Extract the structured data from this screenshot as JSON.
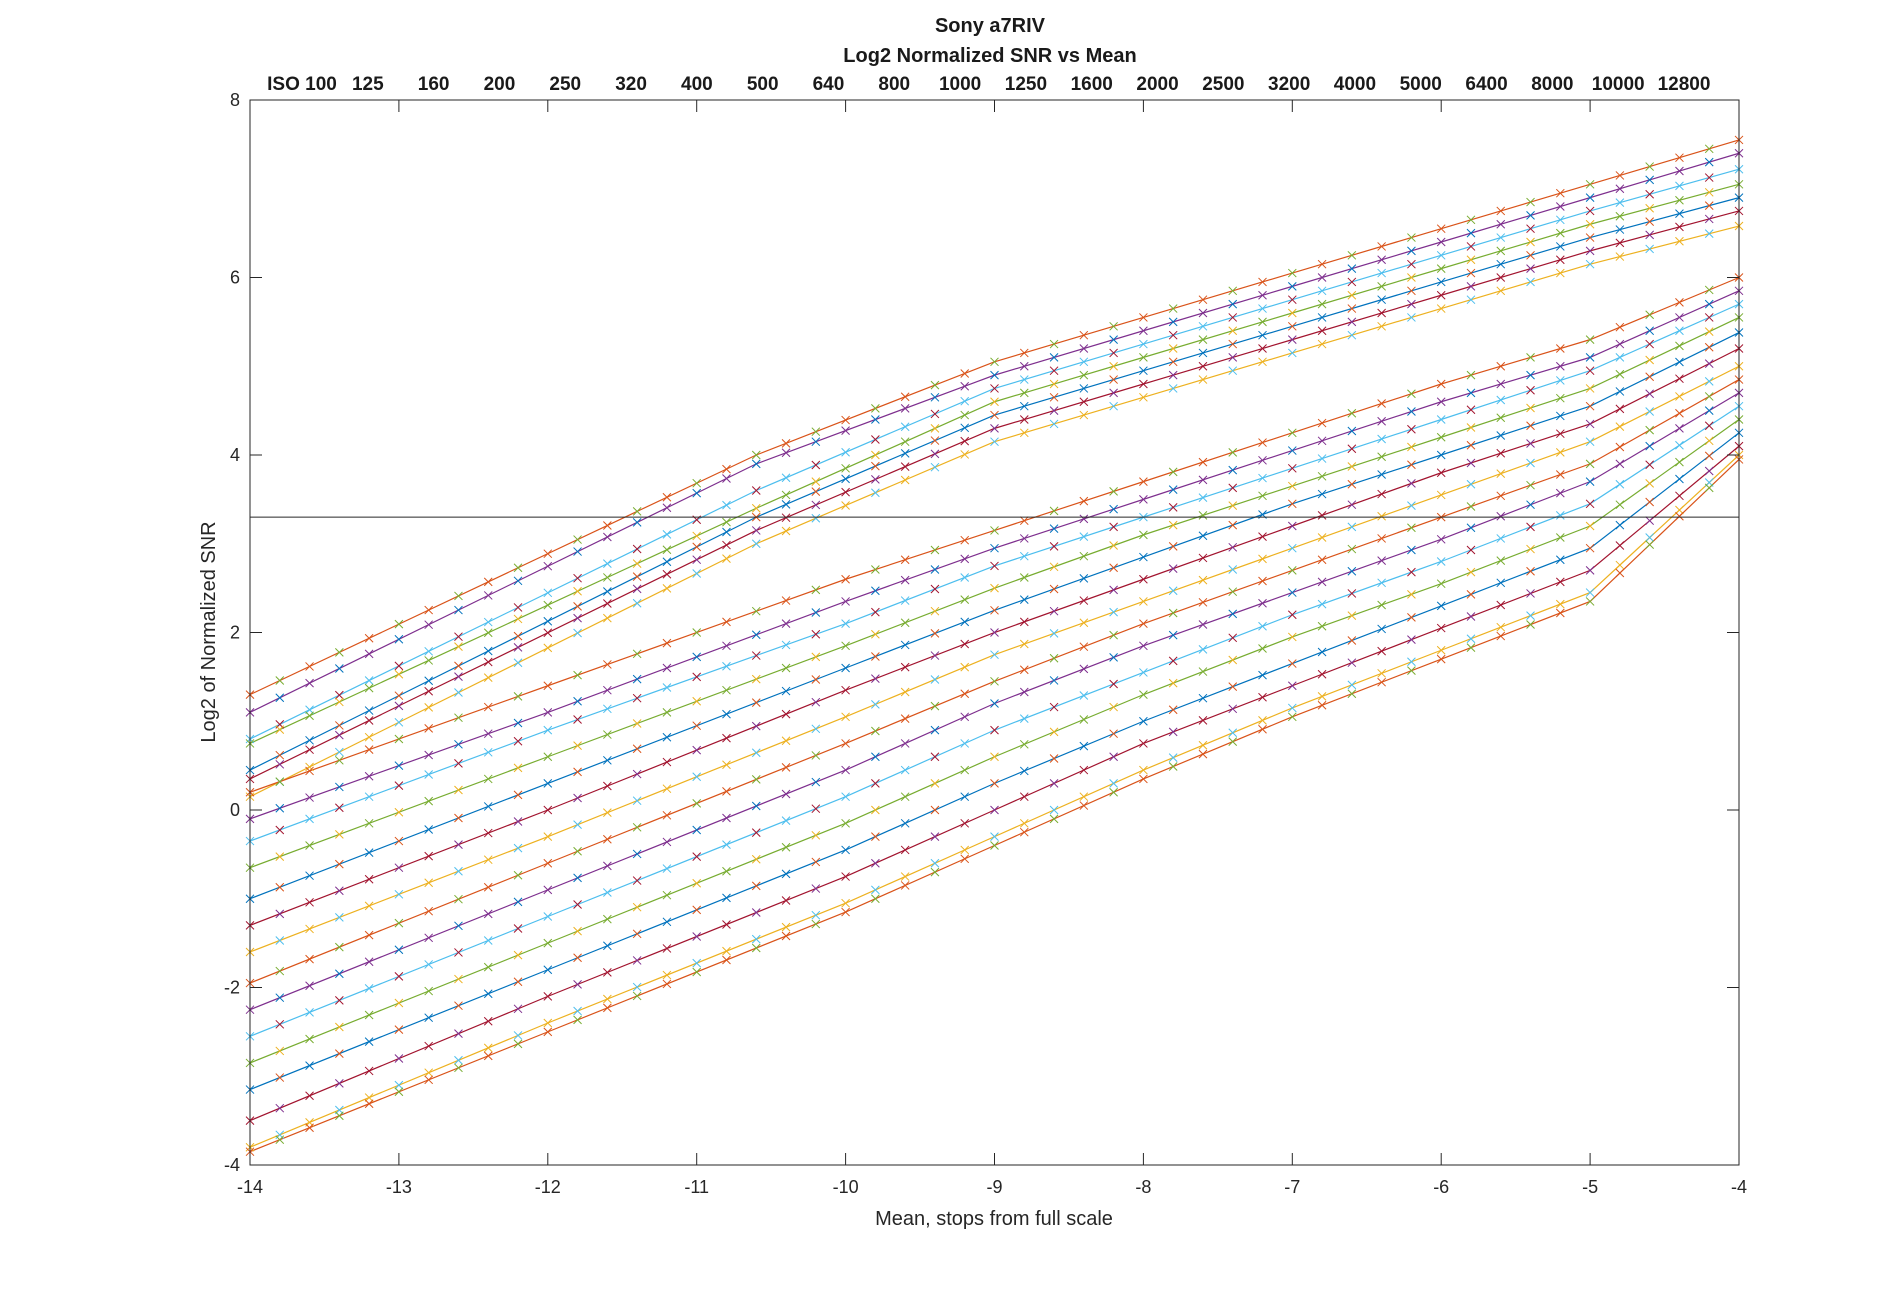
{
  "chart_data": {
    "type": "line",
    "title": "Sony a7RIV",
    "subtitle": "Log2 Normalized SNR vs Mean",
    "xlabel": "Mean, stops from full scale",
    "ylabel": "Log2 of Normalized SNR",
    "xlim": [
      -14,
      -4
    ],
    "ylim": [
      -4,
      8
    ],
    "xticks": [
      "-14",
      "-13",
      "-12",
      "-11",
      "-10",
      "-9",
      "-8",
      "-7",
      "-6",
      "-5",
      "-4"
    ],
    "yticks": [
      "-4",
      "-2",
      "0",
      "2",
      "4",
      "6",
      "8"
    ],
    "grid": false,
    "reference_line_y": 3.3,
    "iso_labels": [
      "ISO 100",
      "125",
      "160",
      "200",
      "250",
      "320",
      "400",
      "500",
      "640",
      "800",
      "1000",
      "1250",
      "1600",
      "2000",
      "2500",
      "3200",
      "4000",
      "5000",
      "6400",
      "8000",
      "10000",
      "12800"
    ],
    "colors": [
      "#D95319",
      "#7E2F8E",
      "#4DBEEE",
      "#77AC30",
      "#0072BD",
      "#A2142F",
      "#EDB120"
    ],
    "series": [
      {
        "iso": "ISO 100",
        "points": [
          [
            -14,
            1.3
          ],
          [
            -10.6,
            4.0
          ],
          [
            -9,
            5.05
          ],
          [
            -8,
            5.55
          ],
          [
            -7,
            6.05
          ],
          [
            -6,
            6.55
          ],
          [
            -5,
            7.05
          ],
          [
            -4,
            7.55
          ]
        ]
      },
      {
        "iso": "125",
        "points": [
          [
            -14,
            1.1
          ],
          [
            -10.6,
            3.9
          ],
          [
            -9,
            4.9
          ],
          [
            -8,
            5.4
          ],
          [
            -7,
            5.9
          ],
          [
            -6,
            6.4
          ],
          [
            -5,
            6.9
          ],
          [
            -4,
            7.4
          ]
        ]
      },
      {
        "iso": "160",
        "points": [
          [
            -14,
            0.8
          ],
          [
            -10.6,
            3.6
          ],
          [
            -9,
            4.75
          ],
          [
            -8,
            5.25
          ],
          [
            -7,
            5.75
          ],
          [
            -6,
            6.25
          ],
          [
            -5,
            6.75
          ],
          [
            -4,
            7.22
          ]
        ]
      },
      {
        "iso": "200",
        "points": [
          [
            -14,
            0.75
          ],
          [
            -10.6,
            3.4
          ],
          [
            -9,
            4.6
          ],
          [
            -8,
            5.1
          ],
          [
            -7,
            5.6
          ],
          [
            -6,
            6.1
          ],
          [
            -5,
            6.6
          ],
          [
            -4,
            7.05
          ]
        ]
      },
      {
        "iso": "250",
        "points": [
          [
            -14,
            0.45
          ],
          [
            -10.6,
            3.3
          ],
          [
            -9,
            4.45
          ],
          [
            -8,
            4.95
          ],
          [
            -7,
            5.45
          ],
          [
            -6,
            5.95
          ],
          [
            -5,
            6.45
          ],
          [
            -4,
            6.9
          ]
        ]
      },
      {
        "iso": "320",
        "points": [
          [
            -14,
            0.35
          ],
          [
            -10.6,
            3.15
          ],
          [
            -9,
            4.3
          ],
          [
            -8,
            4.8
          ],
          [
            -7,
            5.3
          ],
          [
            -6,
            5.8
          ],
          [
            -5,
            6.3
          ],
          [
            -4,
            6.75
          ]
        ]
      },
      {
        "iso": "400",
        "points": [
          [
            -14,
            0.15
          ],
          [
            -10.6,
            3.0
          ],
          [
            -9,
            4.15
          ],
          [
            -8,
            4.65
          ],
          [
            -7,
            5.15
          ],
          [
            -6,
            5.65
          ],
          [
            -5,
            6.15
          ],
          [
            -4,
            6.58
          ]
        ]
      },
      {
        "iso": "500",
        "points": [
          [
            -14,
            0.2
          ],
          [
            -12,
            1.4
          ],
          [
            -10,
            2.6
          ],
          [
            -9,
            3.15
          ],
          [
            -8,
            3.7
          ],
          [
            -7,
            4.25
          ],
          [
            -6,
            4.8
          ],
          [
            -5,
            5.3
          ],
          [
            -4,
            6.0
          ]
        ]
      },
      {
        "iso": "640",
        "points": [
          [
            -14,
            -0.1
          ],
          [
            -12,
            1.1
          ],
          [
            -10,
            2.35
          ],
          [
            -9,
            2.95
          ],
          [
            -8,
            3.5
          ],
          [
            -7,
            4.05
          ],
          [
            -6,
            4.6
          ],
          [
            -5,
            5.1
          ],
          [
            -4,
            5.85
          ]
        ]
      },
      {
        "iso": "800",
        "points": [
          [
            -14,
            -0.35
          ],
          [
            -12,
            0.9
          ],
          [
            -10,
            2.1
          ],
          [
            -9,
            2.75
          ],
          [
            -8,
            3.3
          ],
          [
            -7,
            3.85
          ],
          [
            -6,
            4.4
          ],
          [
            -5,
            4.95
          ],
          [
            -4,
            5.7
          ]
        ]
      },
      {
        "iso": "1000",
        "points": [
          [
            -14,
            -0.65
          ],
          [
            -12,
            0.6
          ],
          [
            -10,
            1.85
          ],
          [
            -9,
            2.5
          ],
          [
            -8,
            3.1
          ],
          [
            -7,
            3.65
          ],
          [
            -6,
            4.2
          ],
          [
            -5,
            4.75
          ],
          [
            -4,
            5.55
          ]
        ]
      },
      {
        "iso": "1250",
        "points": [
          [
            -14,
            -1.0
          ],
          [
            -12,
            0.3
          ],
          [
            -10,
            1.6
          ],
          [
            -9,
            2.25
          ],
          [
            -8,
            2.85
          ],
          [
            -7,
            3.45
          ],
          [
            -6,
            4.0
          ],
          [
            -5,
            4.55
          ],
          [
            -4,
            5.38
          ]
        ]
      },
      {
        "iso": "1600",
        "points": [
          [
            -14,
            -1.3
          ],
          [
            -12,
            0.0
          ],
          [
            -10,
            1.35
          ],
          [
            -9,
            2.0
          ],
          [
            -8,
            2.6
          ],
          [
            -7,
            3.2
          ],
          [
            -6,
            3.8
          ],
          [
            -5,
            4.35
          ],
          [
            -4,
            5.2
          ]
        ]
      },
      {
        "iso": "2000",
        "points": [
          [
            -14,
            -1.6
          ],
          [
            -12,
            -0.3
          ],
          [
            -10,
            1.05
          ],
          [
            -9,
            1.75
          ],
          [
            -8,
            2.35
          ],
          [
            -7,
            2.95
          ],
          [
            -6,
            3.55
          ],
          [
            -5,
            4.15
          ],
          [
            -4,
            5.0
          ]
        ]
      },
      {
        "iso": "2500",
        "points": [
          [
            -14,
            -1.95
          ],
          [
            -12,
            -0.6
          ],
          [
            -10,
            0.75
          ],
          [
            -9,
            1.45
          ],
          [
            -8,
            2.1
          ],
          [
            -7,
            2.7
          ],
          [
            -6,
            3.3
          ],
          [
            -5,
            3.9
          ],
          [
            -4,
            4.85
          ]
        ]
      },
      {
        "iso": "3200",
        "points": [
          [
            -14,
            -2.25
          ],
          [
            -12,
            -0.9
          ],
          [
            -10,
            0.45
          ],
          [
            -9,
            1.2
          ],
          [
            -8,
            1.85
          ],
          [
            -7,
            2.45
          ],
          [
            -6,
            3.05
          ],
          [
            -5,
            3.7
          ],
          [
            -4,
            4.7
          ]
        ]
      },
      {
        "iso": "4000",
        "points": [
          [
            -14,
            -2.55
          ],
          [
            -12,
            -1.2
          ],
          [
            -10,
            0.15
          ],
          [
            -9,
            0.9
          ],
          [
            -8,
            1.55
          ],
          [
            -7,
            2.2
          ],
          [
            -6,
            2.8
          ],
          [
            -5,
            3.45
          ],
          [
            -4,
            4.55
          ]
        ]
      },
      {
        "iso": "5000",
        "points": [
          [
            -14,
            -2.85
          ],
          [
            -12,
            -1.5
          ],
          [
            -10,
            -0.15
          ],
          [
            -9,
            0.6
          ],
          [
            -8,
            1.3
          ],
          [
            -7,
            1.95
          ],
          [
            -6,
            2.55
          ],
          [
            -5,
            3.2
          ],
          [
            -4,
            4.4
          ]
        ]
      },
      {
        "iso": "6400",
        "points": [
          [
            -14,
            -3.15
          ],
          [
            -12,
            -1.8
          ],
          [
            -10,
            -0.45
          ],
          [
            -9,
            0.3
          ],
          [
            -8,
            1.0
          ],
          [
            -7,
            1.65
          ],
          [
            -6,
            2.3
          ],
          [
            -5,
            2.95
          ],
          [
            -4,
            4.25
          ]
        ]
      },
      {
        "iso": "8000",
        "points": [
          [
            -14,
            -3.5
          ],
          [
            -12,
            -2.1
          ],
          [
            -10,
            -0.75
          ],
          [
            -9,
            0.0
          ],
          [
            -8,
            0.75
          ],
          [
            -7,
            1.4
          ],
          [
            -6,
            2.05
          ],
          [
            -5,
            2.7
          ],
          [
            -4,
            4.1
          ]
        ]
      },
      {
        "iso": "10000",
        "points": [
          [
            -14,
            -3.8
          ],
          [
            -12,
            -2.4
          ],
          [
            -10,
            -1.05
          ],
          [
            -9,
            -0.3
          ],
          [
            -8,
            0.45
          ],
          [
            -7,
            1.15
          ],
          [
            -6,
            1.8
          ],
          [
            -5,
            2.45
          ],
          [
            -4,
            4.0
          ]
        ]
      },
      {
        "iso": "12800",
        "points": [
          [
            -14,
            -3.85
          ],
          [
            -12,
            -2.5
          ],
          [
            -10,
            -1.15
          ],
          [
            -9,
            -0.4
          ],
          [
            -8,
            0.35
          ],
          [
            -7,
            1.05
          ],
          [
            -6,
            1.7
          ],
          [
            -5,
            2.35
          ],
          [
            -4,
            3.95
          ]
        ]
      }
    ]
  }
}
